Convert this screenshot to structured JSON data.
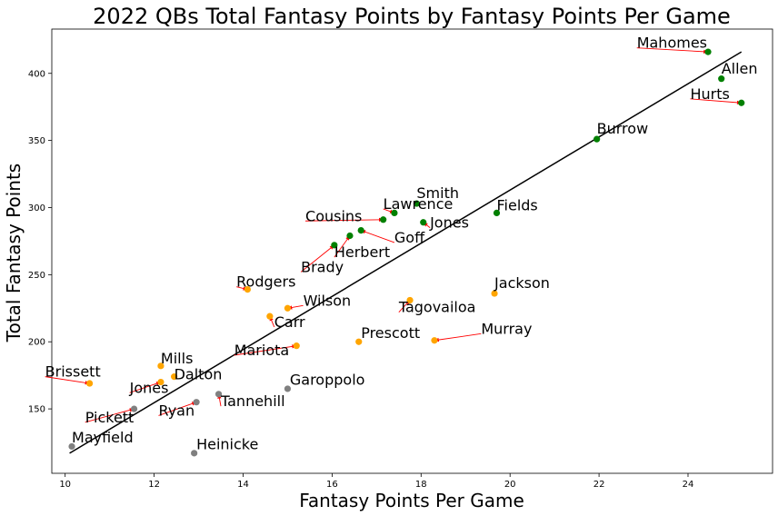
{
  "chart_data": {
    "type": "scatter",
    "title": "2022 QBs Total Fantasy Points by Fantasy Points Per Game",
    "xlabel": "Fantasy Points Per Game",
    "ylabel": "Total Fantasy Points",
    "xlim": [
      9.7,
      25.9
    ],
    "ylim": [
      102,
      433
    ],
    "xticks": [
      10,
      12,
      14,
      16,
      18,
      20,
      22,
      24
    ],
    "yticks": [
      150,
      200,
      250,
      300,
      350,
      400
    ],
    "grid": false,
    "legend": "none",
    "colors": {
      "green": "#008000",
      "orange": "#ffa500",
      "gray": "#808080",
      "trend": "#000000",
      "arrow": "#ff0000"
    },
    "trendline": {
      "x": [
        10.1,
        25.2
      ],
      "y": [
        117,
        416
      ]
    },
    "points": [
      {
        "label": "Mahomes",
        "x": 24.45,
        "y": 416,
        "color": "green",
        "lx": 22.85,
        "ly": 419
      },
      {
        "label": "Allen",
        "x": 24.75,
        "y": 396,
        "color": "green",
        "lx": 24.75,
        "ly": 400
      },
      {
        "label": "Hurts",
        "x": 25.2,
        "y": 378,
        "color": "green",
        "lx": 24.05,
        "ly": 381
      },
      {
        "label": "Burrow",
        "x": 21.95,
        "y": 351,
        "color": "green",
        "lx": 21.95,
        "ly": 355
      },
      {
        "label": "Smith",
        "x": 17.9,
        "y": 303,
        "color": "green",
        "lx": 17.9,
        "ly": 307
      },
      {
        "label": "Lawrence",
        "x": 17.4,
        "y": 296,
        "color": "green",
        "lx": 17.15,
        "ly": 299
      },
      {
        "label": "Fields",
        "x": 19.7,
        "y": 296,
        "color": "green",
        "lx": 19.7,
        "ly": 298
      },
      {
        "label": "Cousins",
        "x": 17.15,
        "y": 291,
        "color": "green",
        "lx": 15.4,
        "ly": 290
      },
      {
        "label": "Jones",
        "x": 18.05,
        "y": 289,
        "color": "green",
        "lx": 18.2,
        "ly": 285
      },
      {
        "label": "Goff",
        "x": 16.65,
        "y": 283,
        "color": "green",
        "lx": 17.4,
        "ly": 274
      },
      {
        "label": "Herbert",
        "x": 16.4,
        "y": 279,
        "color": "green",
        "lx": 16.05,
        "ly": 263
      },
      {
        "label": "Brady",
        "x": 16.05,
        "y": 272,
        "color": "green",
        "lx": 15.3,
        "ly": 252
      },
      {
        "label": "Rodgers",
        "x": 14.1,
        "y": 239,
        "color": "orange",
        "lx": 13.85,
        "ly": 241
      },
      {
        "label": "Jackson",
        "x": 19.65,
        "y": 236,
        "color": "orange",
        "lx": 19.65,
        "ly": 240
      },
      {
        "label": "Tagovailoa",
        "x": 17.75,
        "y": 231,
        "color": "orange",
        "lx": 17.5,
        "ly": 222
      },
      {
        "label": "Wilson",
        "x": 15.0,
        "y": 225,
        "color": "orange",
        "lx": 15.35,
        "ly": 227
      },
      {
        "label": "Carr",
        "x": 14.6,
        "y": 219,
        "color": "orange",
        "lx": 14.7,
        "ly": 211
      },
      {
        "label": "Murray",
        "x": 18.3,
        "y": 201,
        "color": "orange",
        "lx": 19.35,
        "ly": 206
      },
      {
        "label": "Prescott",
        "x": 16.6,
        "y": 200,
        "color": "orange",
        "lx": 16.65,
        "ly": 203
      },
      {
        "label": "Mariota",
        "x": 15.2,
        "y": 197,
        "color": "orange",
        "lx": 13.8,
        "ly": 190
      },
      {
        "label": "Mills",
        "x": 12.15,
        "y": 182,
        "color": "orange",
        "lx": 12.15,
        "ly": 184
      },
      {
        "label": "Dalton",
        "x": 12.45,
        "y": 174,
        "color": "orange",
        "lx": 12.45,
        "ly": 172
      },
      {
        "label": "Jones",
        "x": 12.15,
        "y": 170,
        "color": "orange",
        "lx": 11.45,
        "ly": 162
      },
      {
        "label": "Brissett",
        "x": 10.55,
        "y": 169,
        "color": "orange",
        "lx": 9.55,
        "ly": 174
      },
      {
        "label": "Garoppolo",
        "x": 15.0,
        "y": 165,
        "color": "gray",
        "lx": 15.05,
        "ly": 168
      },
      {
        "label": "Tannehill",
        "x": 13.45,
        "y": 161,
        "color": "gray",
        "lx": 13.5,
        "ly": 152
      },
      {
        "label": "Ryan",
        "x": 12.95,
        "y": 155,
        "color": "gray",
        "lx": 12.1,
        "ly": 145
      },
      {
        "label": "Pickett",
        "x": 11.55,
        "y": 150,
        "color": "gray",
        "lx": 10.45,
        "ly": 140
      },
      {
        "label": "Mayfield",
        "x": 10.15,
        "y": 122,
        "color": "gray",
        "lx": 10.15,
        "ly": 125
      },
      {
        "label": "Heinicke",
        "x": 12.9,
        "y": 117,
        "color": "gray",
        "lx": 12.95,
        "ly": 120
      }
    ]
  }
}
